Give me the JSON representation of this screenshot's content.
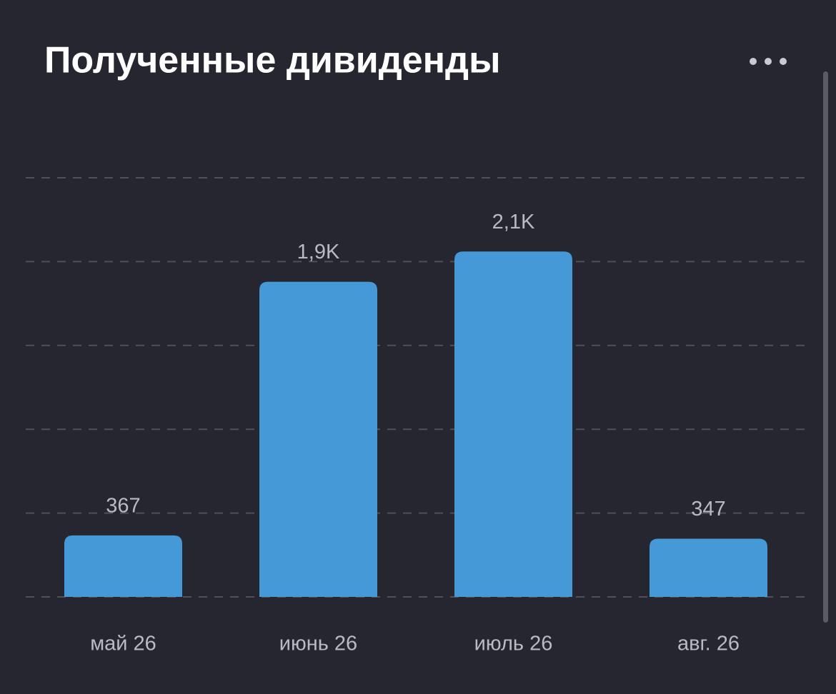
{
  "chart_data": {
    "type": "bar",
    "title": "Полученные дивиденды",
    "categories": [
      "май 26",
      "июнь 26",
      "июль 26",
      "авг. 26"
    ],
    "values": [
      367,
      1880,
      2060,
      347
    ],
    "value_labels": [
      "367",
      "1,9K",
      "2,1K",
      "347"
    ],
    "color": "#4499d6",
    "ylim": [
      0,
      2500
    ],
    "yticks": [
      0,
      500,
      1000,
      1500,
      2000,
      2500
    ],
    "grid": true
  }
}
